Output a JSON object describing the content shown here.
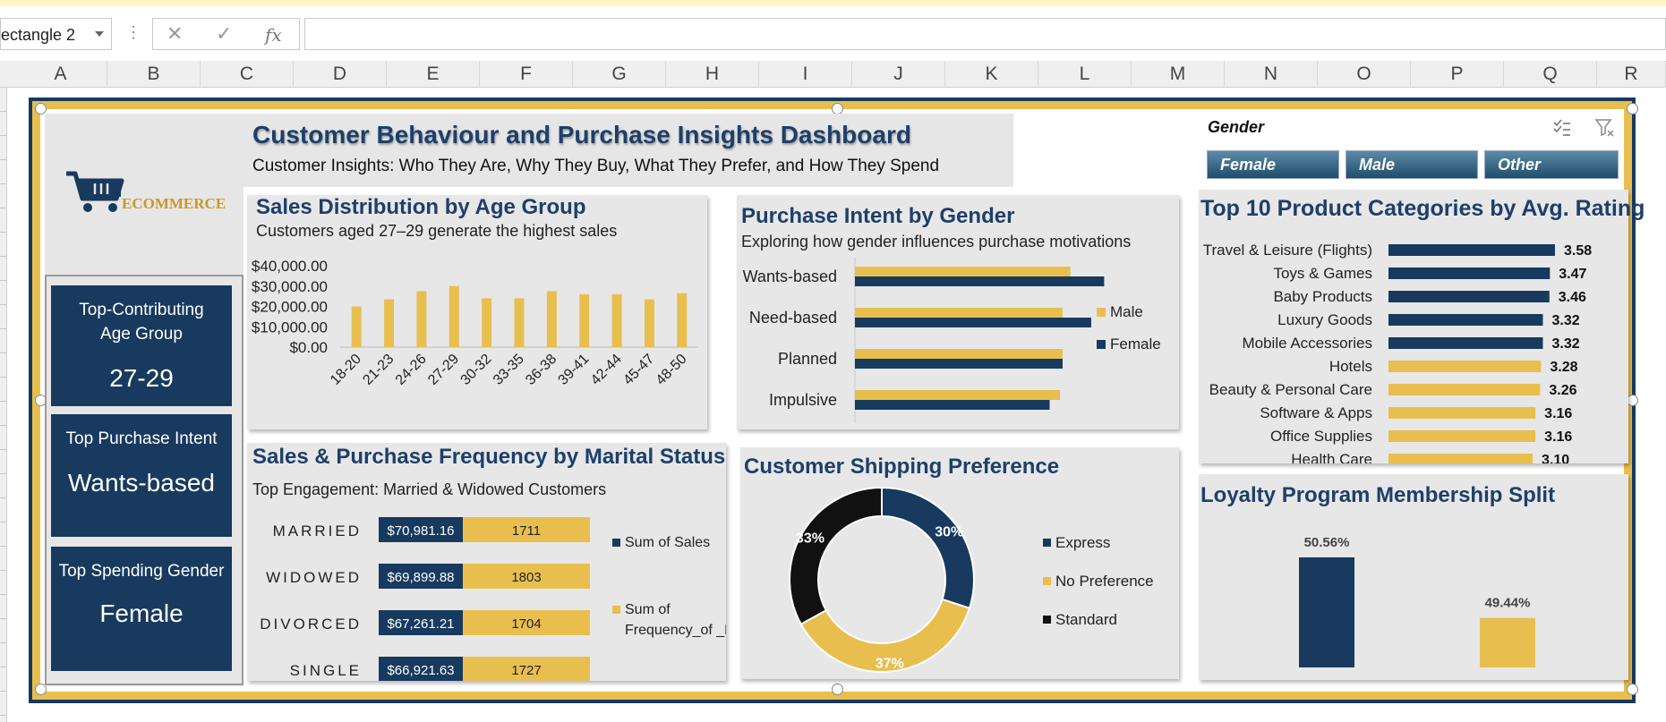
{
  "excel": {
    "name_box": "ectangle 2",
    "fx_cancel": "✕",
    "fx_enter": "✓",
    "fx_label": "fx",
    "columns": [
      "A",
      "B",
      "C",
      "D",
      "E",
      "F",
      "G",
      "H",
      "I",
      "J",
      "K",
      "L",
      "M",
      "N",
      "O",
      "P",
      "Q",
      "R"
    ]
  },
  "colors": {
    "navy": "#173a5e",
    "gold": "#e8bf4f",
    "title": "#1d3f6a",
    "panel": "#e7e7e7"
  },
  "logo": {
    "text": "ECOMMERCE",
    "icon": "shopping-cart-icon"
  },
  "header": {
    "title": "Customer Behaviour and Purchase Insights Dashboard",
    "subtitle": "Customer Insights: Who They Are, Why They Buy, What They Prefer, and How They Spend"
  },
  "kpis": [
    {
      "label": "Top-Contributing Age Group",
      "value": "27-29"
    },
    {
      "label": "Top Purchase Intent",
      "value": "Wants-based"
    },
    {
      "label": "Top Spending Gender",
      "value": "Female"
    }
  ],
  "slicer": {
    "title": "Gender",
    "items": [
      "Female",
      "Male",
      "Other"
    ]
  },
  "cards": {
    "age": {
      "title": "Sales Distribution by Age Group",
      "subtitle": "Customers aged 27–29 generate the highest sales"
    },
    "intent": {
      "title": "Purchase Intent by Gender",
      "subtitle": "Exploring how gender influences purchase motivations"
    },
    "marital": {
      "title": "Sales & Purchase Frequency by Marital Status",
      "subtitle": "Top Engagement: Married & Widowed Customers"
    },
    "shipping": {
      "title": "Customer Shipping Preference"
    },
    "categories": {
      "title": "Top 10 Product Categories by Avg. Rating"
    },
    "loyalty": {
      "title": "Loyalty Program Membership Split"
    }
  },
  "chart_data": [
    {
      "id": "age",
      "type": "bar",
      "title": "Sales Distribution by Age Group",
      "categories": [
        "18-20",
        "21-23",
        "24-26",
        "27-29",
        "30-32",
        "33-35",
        "36-38",
        "39-41",
        "42-44",
        "45-47",
        "48-50"
      ],
      "values": [
        20000,
        23500,
        27500,
        30000,
        24000,
        24000,
        27500,
        26000,
        26000,
        23500,
        26500
      ],
      "y_ticks": [
        "$40,000.00",
        "$30,000.00",
        "$20,000.00",
        "$10,000.00",
        "$0.00"
      ],
      "ylim": [
        0,
        40000
      ]
    },
    {
      "id": "intent",
      "type": "bar",
      "orientation": "horizontal",
      "title": "Purchase Intent by Gender",
      "categories": [
        "Wants-based",
        "Need-based",
        "Planned",
        "Impulsive"
      ],
      "series": [
        {
          "name": "Male",
          "values": [
            0.83,
            0.8,
            0.8,
            0.79
          ],
          "color": "#e8bf4f"
        },
        {
          "name": "Female",
          "values": [
            0.96,
            0.91,
            0.8,
            0.75
          ],
          "color": "#173a5e"
        }
      ],
      "legend": [
        "Male",
        "Female"
      ]
    },
    {
      "id": "marital",
      "type": "bar",
      "orientation": "horizontal",
      "stacked": true,
      "title": "Sales & Purchase Frequency by Marital Status",
      "categories": [
        "MARRIED",
        "WIDOWED",
        "DIVORCED",
        "SINGLE"
      ],
      "series": [
        {
          "name": "Sum of Sales",
          "labels": [
            "$70,981.16",
            "$69,899.88",
            "$67,261.21",
            "$66,921.63"
          ],
          "values": [
            70981.16,
            69899.88,
            67261.21,
            66921.63
          ]
        },
        {
          "name": "Sum of Frequency_of _Purchase",
          "labels": [
            "1711",
            "1803",
            "1704",
            "1727"
          ],
          "values": [
            1711,
            1803,
            1704,
            1727
          ]
        }
      ],
      "legend": [
        "Sum of Sales",
        "Sum of Frequency_of _Purchase"
      ]
    },
    {
      "id": "shipping",
      "type": "pie",
      "donut": true,
      "title": "Customer Shipping Preference",
      "slices": [
        {
          "name": "Express",
          "value": 30,
          "label": "30%",
          "color": "#173a5e"
        },
        {
          "name": "No Preference",
          "value": 37,
          "label": "37%",
          "color": "#e8bf4f"
        },
        {
          "name": "Standard",
          "value": 33,
          "label": "33%",
          "color": "#111111"
        }
      ]
    },
    {
      "id": "categories",
      "type": "bar",
      "orientation": "horizontal",
      "title": "Top 10 Product Categories by Avg. Rating",
      "categories": [
        "Travel & Leisure (Flights)",
        "Toys & Games",
        "Baby Products",
        "Luxury Goods",
        "Mobile Accessories",
        "Hotels",
        "Beauty & Personal Care",
        "Software & Apps",
        "Office Supplies",
        "Health Care"
      ],
      "values": [
        3.58,
        3.47,
        3.46,
        3.32,
        3.32,
        3.28,
        3.26,
        3.16,
        3.16,
        3.1
      ],
      "labels": [
        "3.58",
        "3.47",
        "3.46",
        "3.32",
        "3.32",
        "3.28",
        "3.26",
        "3.16",
        "3.16",
        "3.10"
      ],
      "highlight_top": 5
    },
    {
      "id": "loyalty",
      "type": "bar",
      "title": "Loyalty Program Membership Split",
      "categories": [
        "FALSE",
        "TRUE"
      ],
      "values": [
        50.56,
        49.44
      ],
      "labels": [
        "50.56%",
        "49.44%"
      ]
    }
  ]
}
